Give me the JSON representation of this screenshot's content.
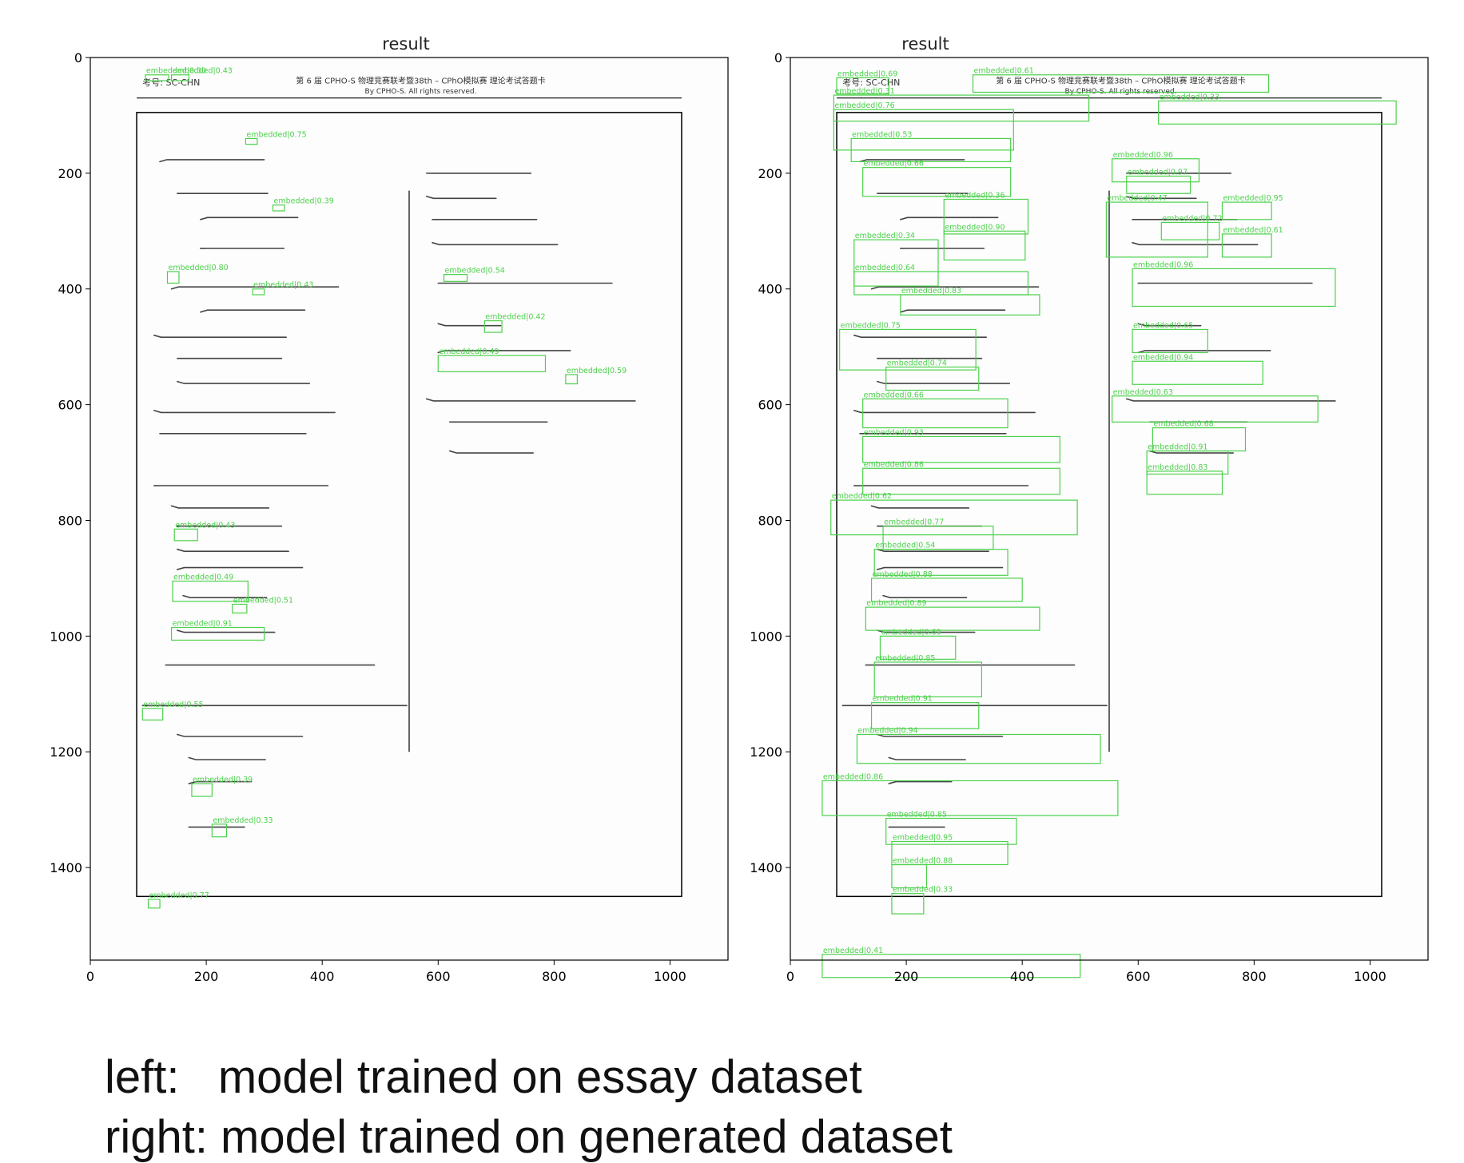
{
  "panels": [
    {
      "title": "result",
      "x_ticks": [
        "0",
        "200",
        "400",
        "600",
        "800",
        "1000"
      ],
      "y_ticks": [
        "0",
        "200",
        "400",
        "600",
        "800",
        "1000",
        "1200",
        "1400"
      ],
      "header_text": "第 6 届 CPHO-S 物理竞赛联考暨38th – CPhO模拟赛  理论考试答题卡",
      "header_sub": "By CPHO-S. All rights reserved.",
      "exam_id_label": "考号: SC-CHN",
      "boxes": [
        {
          "label": "embedded|0.30",
          "x": 95,
          "y": 30,
          "w": 40,
          "h": 10
        },
        {
          "label": "embedded|0.43",
          "x": 140,
          "y": 30,
          "w": 30,
          "h": 10
        },
        {
          "label": "embedded|0.75",
          "x": 268,
          "y": 140,
          "w": 20,
          "h": 10
        },
        {
          "label": "embedded|0.39",
          "x": 315,
          "y": 255,
          "w": 20,
          "h": 10
        },
        {
          "label": "embedded|0.80",
          "x": 133,
          "y": 370,
          "w": 20,
          "h": 20
        },
        {
          "label": "embedded|0.43",
          "x": 280,
          "y": 400,
          "w": 20,
          "h": 10
        },
        {
          "label": "embedded|0.54",
          "x": 610,
          "y": 375,
          "w": 40,
          "h": 12
        },
        {
          "label": "embedded|0.42",
          "x": 680,
          "y": 455,
          "w": 30,
          "h": 20
        },
        {
          "label": "embedded|0.49",
          "x": 600,
          "y": 515,
          "w": 185,
          "h": 28
        },
        {
          "label": "embedded|0.59",
          "x": 820,
          "y": 548,
          "w": 20,
          "h": 16
        },
        {
          "label": "embedded|0.43",
          "x": 145,
          "y": 815,
          "w": 40,
          "h": 20
        },
        {
          "label": "embedded|0.49",
          "x": 142,
          "y": 905,
          "w": 130,
          "h": 35
        },
        {
          "label": "embedded|0.51",
          "x": 245,
          "y": 945,
          "w": 25,
          "h": 15
        },
        {
          "label": "embedded|0.91",
          "x": 140,
          "y": 985,
          "w": 160,
          "h": 22
        },
        {
          "label": "embedded|0.55",
          "x": 90,
          "y": 1125,
          "w": 35,
          "h": 20
        },
        {
          "label": "embedded|0.39",
          "x": 175,
          "y": 1255,
          "w": 35,
          "h": 22
        },
        {
          "label": "embedded|0.33",
          "x": 210,
          "y": 1325,
          "w": 25,
          "h": 22
        },
        {
          "label": "embedded|0.77",
          "x": 100,
          "y": 1455,
          "w": 20,
          "h": 15
        }
      ]
    },
    {
      "title": "result",
      "x_ticks": [
        "0",
        "200",
        "400",
        "600",
        "800",
        "1000"
      ],
      "y_ticks": [
        "0",
        "200",
        "400",
        "600",
        "800",
        "1000",
        "1200",
        "1400"
      ],
      "header_text": "第 6 届 CPHO-S 物理竞赛联考暨38th – CPhO模拟赛  理论考试答题卡",
      "header_sub": "By CPHO-S. All rights reserved.",
      "exam_id_label": "考号: SC-CHN",
      "boxes": [
        {
          "label": "embedded|0.69",
          "x": 80,
          "y": 35,
          "w": 90,
          "h": 28
        },
        {
          "label": "embedded|0.61",
          "x": 315,
          "y": 30,
          "w": 510,
          "h": 30
        },
        {
          "label": "embedded|0.31",
          "x": 75,
          "y": 65,
          "w": 440,
          "h": 45
        },
        {
          "label": "embedded|0.33",
          "x": 635,
          "y": 75,
          "w": 410,
          "h": 40
        },
        {
          "label": "embedded|0.76",
          "x": 75,
          "y": 90,
          "w": 310,
          "h": 70
        },
        {
          "label": "embedded|0.53",
          "x": 105,
          "y": 140,
          "w": 275,
          "h": 40
        },
        {
          "label": "embedded|0.96",
          "x": 555,
          "y": 175,
          "w": 150,
          "h": 40
        },
        {
          "label": "embedded|0.97",
          "x": 580,
          "y": 205,
          "w": 110,
          "h": 30
        },
        {
          "label": "embedded|0.66",
          "x": 125,
          "y": 190,
          "w": 255,
          "h": 50
        },
        {
          "label": "embedded|0.36",
          "x": 265,
          "y": 245,
          "w": 145,
          "h": 60
        },
        {
          "label": "embedded|0.47",
          "x": 545,
          "y": 250,
          "w": 175,
          "h": 95
        },
        {
          "label": "embedded|0.95",
          "x": 745,
          "y": 250,
          "w": 85,
          "h": 30
        },
        {
          "label": "embedded|0.72",
          "x": 640,
          "y": 285,
          "w": 100,
          "h": 30
        },
        {
          "label": "embedded|0.61",
          "x": 745,
          "y": 305,
          "w": 85,
          "h": 40
        },
        {
          "label": "embedded|0.90",
          "x": 265,
          "y": 300,
          "w": 140,
          "h": 50
        },
        {
          "label": "embedded|0.34",
          "x": 110,
          "y": 315,
          "w": 145,
          "h": 80
        },
        {
          "label": "embedded|0.64",
          "x": 110,
          "y": 370,
          "w": 300,
          "h": 40
        },
        {
          "label": "embedded|0.96",
          "x": 590,
          "y": 365,
          "w": 350,
          "h": 65
        },
        {
          "label": "embedded|0.83",
          "x": 190,
          "y": 410,
          "w": 240,
          "h": 35
        },
        {
          "label": "embedded|0.75",
          "x": 85,
          "y": 470,
          "w": 235,
          "h": 70
        },
        {
          "label": "embedded|0.65",
          "x": 590,
          "y": 470,
          "w": 130,
          "h": 40
        },
        {
          "label": "embedded|0.94",
          "x": 590,
          "y": 525,
          "w": 225,
          "h": 40
        },
        {
          "label": "embedded|0.74",
          "x": 165,
          "y": 535,
          "w": 160,
          "h": 40
        },
        {
          "label": "embedded|0.66",
          "x": 125,
          "y": 590,
          "w": 250,
          "h": 50
        },
        {
          "label": "embedded|0.63",
          "x": 555,
          "y": 585,
          "w": 355,
          "h": 45
        },
        {
          "label": "embedded|0.93",
          "x": 125,
          "y": 655,
          "w": 340,
          "h": 45
        },
        {
          "label": "embedded|0.68",
          "x": 625,
          "y": 640,
          "w": 160,
          "h": 40
        },
        {
          "label": "embedded|0.86",
          "x": 125,
          "y": 710,
          "w": 340,
          "h": 45
        },
        {
          "label": "embedded|0.91",
          "x": 615,
          "y": 680,
          "w": 140,
          "h": 40
        },
        {
          "label": "embedded|0.83",
          "x": 615,
          "y": 715,
          "w": 130,
          "h": 40
        },
        {
          "label": "embedded|0.62",
          "x": 70,
          "y": 765,
          "w": 425,
          "h": 60
        },
        {
          "label": "embedded|0.77",
          "x": 160,
          "y": 810,
          "w": 190,
          "h": 40
        },
        {
          "label": "embedded|0.54",
          "x": 145,
          "y": 850,
          "w": 230,
          "h": 45
        },
        {
          "label": "embedded|0.88",
          "x": 140,
          "y": 900,
          "w": 260,
          "h": 40
        },
        {
          "label": "embedded|0.89",
          "x": 130,
          "y": 950,
          "w": 300,
          "h": 40
        },
        {
          "label": "embedded|0.69",
          "x": 155,
          "y": 1000,
          "w": 130,
          "h": 40
        },
        {
          "label": "embedded|0.85",
          "x": 145,
          "y": 1045,
          "w": 185,
          "h": 60
        },
        {
          "label": "embedded|0.91",
          "x": 140,
          "y": 1115,
          "w": 185,
          "h": 45
        },
        {
          "label": "embedded|0.94",
          "x": 115,
          "y": 1170,
          "w": 420,
          "h": 50
        },
        {
          "label": "embedded|0.86",
          "x": 55,
          "y": 1250,
          "w": 510,
          "h": 60
        },
        {
          "label": "embedded|0.85",
          "x": 165,
          "y": 1315,
          "w": 225,
          "h": 45
        },
        {
          "label": "embedded|0.95",
          "x": 175,
          "y": 1355,
          "w": 200,
          "h": 40
        },
        {
          "label": "embedded|0.88",
          "x": 175,
          "y": 1395,
          "w": 60,
          "h": 40
        },
        {
          "label": "embedded|0.33",
          "x": 175,
          "y": 1445,
          "w": 55,
          "h": 35
        },
        {
          "label": "embedded|0.41",
          "x": 55,
          "y": 1550,
          "w": 445,
          "h": 40
        }
      ]
    }
  ],
  "caption": {
    "line1": "left:   model trained on essay dataset",
    "line2": "right: model trained on generated dataset"
  },
  "colors": {
    "box": "#4cd14c",
    "ink": "#333333",
    "frame": "#000000"
  }
}
